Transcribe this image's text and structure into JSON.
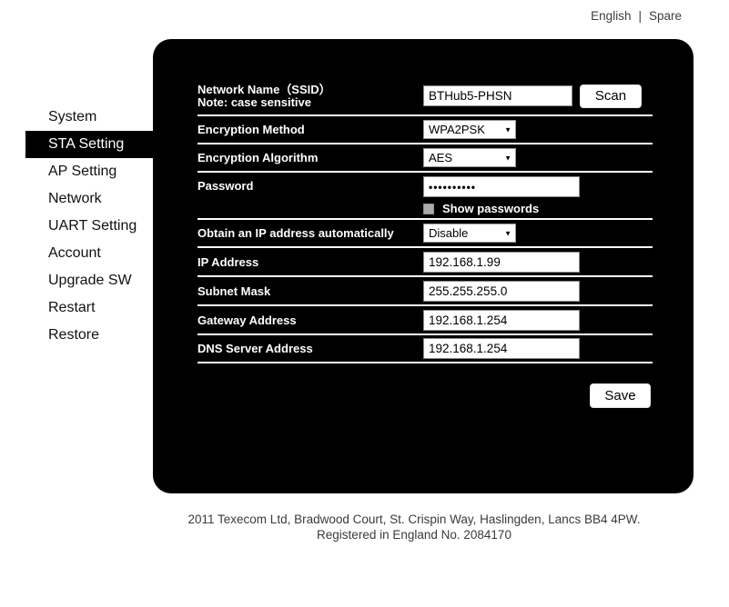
{
  "topbar": {
    "links": [
      {
        "label": "English"
      },
      {
        "label": "Spare"
      }
    ],
    "separator": "|"
  },
  "sidebar": {
    "items": [
      {
        "label": "System",
        "active": false
      },
      {
        "label": "STA Setting",
        "active": true
      },
      {
        "label": "AP Setting",
        "active": false
      },
      {
        "label": "Network",
        "active": false
      },
      {
        "label": "UART Setting",
        "active": false
      },
      {
        "label": "Account",
        "active": false
      },
      {
        "label": "Upgrade SW",
        "active": false
      },
      {
        "label": "Restart",
        "active": false
      },
      {
        "label": "Restore",
        "active": false
      }
    ]
  },
  "form": {
    "ssid": {
      "label_line1": "Network Name（SSID）",
      "label_line2": "Note: case sensitive",
      "value": "BTHub5-PHSN",
      "scan_button": "Scan"
    },
    "encryption_method": {
      "label": "Encryption Method",
      "value": "WPA2PSK"
    },
    "encryption_algorithm": {
      "label": "Encryption Algorithm",
      "value": "AES"
    },
    "password": {
      "label": "Password",
      "value": "••••••••••",
      "show_label": "Show passwords",
      "checked": false
    },
    "obtain_ip": {
      "label": "Obtain an IP address automatically",
      "value": "Disable"
    },
    "ip_address": {
      "label": "IP Address",
      "value": "192.168.1.99"
    },
    "subnet_mask": {
      "label": "Subnet Mask",
      "value": "255.255.255.0"
    },
    "gateway": {
      "label": "Gateway Address",
      "value": "192.168.1.254"
    },
    "dns": {
      "label": "DNS Server Address",
      "value": "192.168.1.254"
    },
    "save_button": "Save"
  },
  "footer": {
    "line1": "2011 Texecom Ltd, Bradwood Court, St. Crispin Way, Haslingden, Lancs BB4 4PW.",
    "line2": "Registered in England No. 2084170"
  },
  "colors": {
    "panel_bg": "#000000",
    "link_text": "#3d3d3d",
    "footer_text": "#3b3b3b",
    "separator_line": "#ffffff"
  }
}
